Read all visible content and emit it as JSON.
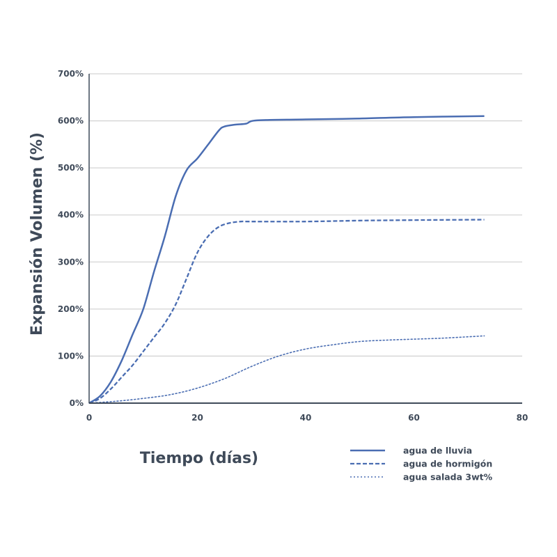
{
  "chart_data": {
    "type": "line",
    "title": "",
    "xlabel": "Tiempo (días)",
    "ylabel": "Expansión Volumen (%)",
    "xlim": [
      0,
      80
    ],
    "ylim": [
      0,
      700
    ],
    "x_ticks": [
      0,
      20,
      40,
      60,
      80
    ],
    "x_tick_labels": [
      "0",
      "20",
      "40",
      "60",
      "80"
    ],
    "y_ticks": [
      0,
      100,
      200,
      300,
      400,
      500,
      600,
      700
    ],
    "y_tick_labels": [
      "0%",
      "100%",
      "200%",
      "300%",
      "400%",
      "500%",
      "600%",
      "700%"
    ],
    "grid": "horizontal",
    "legend_position": "bottom-right",
    "colors": {
      "line": "#4a6db2",
      "grid": "#d4d4d4",
      "axis": "#3f4a59",
      "text": "#3f4a59"
    },
    "series": [
      {
        "name": "agua de lluvia",
        "style": "solid",
        "x": [
          0,
          2,
          4,
          6,
          8,
          10,
          12,
          14,
          16,
          18,
          20,
          22,
          24,
          25,
          27,
          29,
          31,
          40,
          50,
          60,
          73
        ],
        "y": [
          0,
          15,
          45,
          90,
          145,
          200,
          280,
          355,
          440,
          495,
          520,
          550,
          580,
          588,
          592,
          594,
          601,
          603,
          605,
          608,
          610
        ]
      },
      {
        "name": "agua de hormigón",
        "style": "dashed",
        "x": [
          0,
          2,
          4,
          6,
          8,
          10,
          12,
          14,
          16,
          18,
          20,
          22,
          24,
          26,
          28,
          30,
          40,
          50,
          60,
          73
        ],
        "y": [
          0,
          10,
          30,
          55,
          80,
          110,
          140,
          170,
          210,
          265,
          320,
          355,
          375,
          383,
          386,
          386,
          386,
          388,
          389,
          390
        ]
      },
      {
        "name": "agua salada 3wt%",
        "style": "dotted",
        "x": [
          0,
          5,
          10,
          15,
          20,
          25,
          30,
          35,
          40,
          45,
          50,
          55,
          60,
          65,
          70,
          73
        ],
        "y": [
          0,
          4,
          10,
          18,
          32,
          52,
          78,
          100,
          115,
          124,
          131,
          134,
          136,
          138,
          141,
          143
        ]
      }
    ]
  }
}
